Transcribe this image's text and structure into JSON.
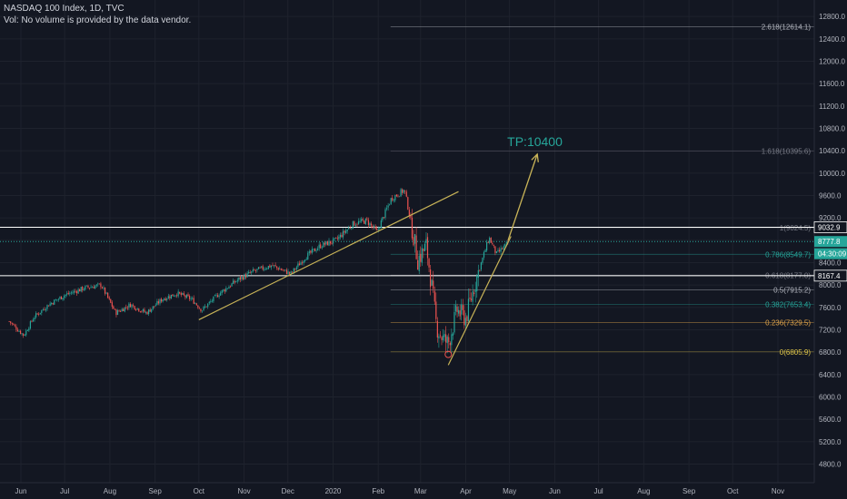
{
  "header": {
    "title": "NASDAQ 100 Index, 1D, TVC",
    "volume_note": "Vol: No volume is provided by the data vendor."
  },
  "colors": {
    "background": "#131722",
    "grid": "#1e222d",
    "up": "#26a69a",
    "down": "#ef5350",
    "trendline": "#c9b458",
    "tp_arrow": "#c9b458",
    "tp_text": "#26a69a",
    "white_line": "#ffffff",
    "dotted_line": "#26a69a"
  },
  "chart_data": {
    "type": "candlestick",
    "y_range": [
      4500,
      12900
    ],
    "y_ticks": [
      4800,
      5200,
      5600,
      6000,
      6400,
      6800,
      7200,
      7600,
      8000,
      8400,
      8800,
      9200,
      9600,
      10000,
      10400,
      10800,
      11200,
      11600,
      12000,
      12400,
      12800
    ],
    "x_labels": [
      {
        "label": "Jun",
        "date": "2019-06-01"
      },
      {
        "label": "Jul",
        "date": "2019-07-01"
      },
      {
        "label": "Aug",
        "date": "2019-08-01"
      },
      {
        "label": "Sep",
        "date": "2019-09-01"
      },
      {
        "label": "Oct",
        "date": "2019-10-01"
      },
      {
        "label": "Nov",
        "date": "2019-11-01"
      },
      {
        "label": "Dec",
        "date": "2019-12-01"
      },
      {
        "label": "2020",
        "date": "2020-01-01"
      },
      {
        "label": "Feb",
        "date": "2020-02-01"
      },
      {
        "label": "Mar",
        "date": "2020-03-01"
      },
      {
        "label": "Apr",
        "date": "2020-04-01"
      },
      {
        "label": "May",
        "date": "2020-05-01"
      },
      {
        "label": "Jun",
        "date": "2020-06-01"
      },
      {
        "label": "Jul",
        "date": "2020-07-01"
      },
      {
        "label": "Aug",
        "date": "2020-08-01"
      },
      {
        "label": "Sep",
        "date": "2020-09-01"
      },
      {
        "label": "Oct",
        "date": "2020-10-01"
      },
      {
        "label": "Nov",
        "date": "2020-11-01"
      }
    ],
    "closes": [
      {
        "date": "2019-05-24",
        "value": 7350
      },
      {
        "date": "2019-06-03",
        "value": 7100
      },
      {
        "date": "2019-06-10",
        "value": 7430
      },
      {
        "date": "2019-06-20",
        "value": 7650
      },
      {
        "date": "2019-07-01",
        "value": 7820
      },
      {
        "date": "2019-07-15",
        "value": 7950
      },
      {
        "date": "2019-07-26",
        "value": 8000
      },
      {
        "date": "2019-08-05",
        "value": 7500
      },
      {
        "date": "2019-08-15",
        "value": 7650
      },
      {
        "date": "2019-08-26",
        "value": 7500
      },
      {
        "date": "2019-09-06",
        "value": 7750
      },
      {
        "date": "2019-09-16",
        "value": 7850
      },
      {
        "date": "2019-09-26",
        "value": 7750
      },
      {
        "date": "2019-10-03",
        "value": 7550
      },
      {
        "date": "2019-10-15",
        "value": 7850
      },
      {
        "date": "2019-10-28",
        "value": 8100
      },
      {
        "date": "2019-11-08",
        "value": 8250
      },
      {
        "date": "2019-11-20",
        "value": 8350
      },
      {
        "date": "2019-12-03",
        "value": 8200
      },
      {
        "date": "2019-12-13",
        "value": 8500
      },
      {
        "date": "2019-12-23",
        "value": 8700
      },
      {
        "date": "2020-01-03",
        "value": 8800
      },
      {
        "date": "2020-01-15",
        "value": 9100
      },
      {
        "date": "2020-01-24",
        "value": 9150
      },
      {
        "date": "2020-01-31",
        "value": 8950
      },
      {
        "date": "2020-02-10",
        "value": 9550
      },
      {
        "date": "2020-02-19",
        "value": 9700
      },
      {
        "date": "2020-02-24",
        "value": 9050
      },
      {
        "date": "2020-02-28",
        "value": 8450
      },
      {
        "date": "2020-03-05",
        "value": 8700
      },
      {
        "date": "2020-03-09",
        "value": 7900
      },
      {
        "date": "2020-03-12",
        "value": 7250
      },
      {
        "date": "2020-03-16",
        "value": 7050
      },
      {
        "date": "2020-03-20",
        "value": 6950
      },
      {
        "date": "2020-03-26",
        "value": 7550
      },
      {
        "date": "2020-04-01",
        "value": 7400
      },
      {
        "date": "2020-04-08",
        "value": 8100
      },
      {
        "date": "2020-04-17",
        "value": 8850
      },
      {
        "date": "2020-04-22",
        "value": 8550
      },
      {
        "date": "2020-04-30",
        "value": 8750
      }
    ],
    "fib_levels": [
      {
        "label": "2.618(12614.1)",
        "value": 12614.1,
        "color": "#b2b5be"
      },
      {
        "label": "1.618(10395.6)",
        "value": 10395.6,
        "color": "#787b86"
      },
      {
        "label": "1(9024.5)",
        "value": 9024.5,
        "color": "#787b86"
      },
      {
        "label": "0.786(8549.7)",
        "value": 8549.7,
        "color": "#26a69a"
      },
      {
        "label": "0.618(8177.0)",
        "value": 8177.0,
        "color": "#787b86"
      },
      {
        "label": "0.5(7915.2)",
        "value": 7915.2,
        "color": "#b2b5be"
      },
      {
        "label": "0.382(7653.4)",
        "value": 7653.4,
        "color": "#26a69a"
      },
      {
        "label": "0.236(7329.5)",
        "value": 7329.5,
        "color": "#e0a44a"
      },
      {
        "label": "0(6805.9)",
        "value": 6805.9,
        "color": "#e0c64a"
      }
    ],
    "horizontal_lines": [
      {
        "value": 9032.9,
        "label": "9032.9"
      },
      {
        "value": 8167.4,
        "label": "8167.4"
      }
    ],
    "dotted_line": {
      "value": 8777.8
    },
    "price_badges": [
      {
        "label": "8777.8",
        "value": 8777.8,
        "bg": "#26a69a"
      },
      {
        "label": "04:30:09",
        "value": 8560,
        "bg": "#26a69a"
      }
    ],
    "trendlines": [
      {
        "from": {
          "date": "2019-10-01",
          "value": 7380
        },
        "to": {
          "date": "2020-03-27",
          "value": 9670
        }
      },
      {
        "from": {
          "date": "2020-03-20",
          "value": 6570
        },
        "to": {
          "date": "2020-05-02",
          "value": 8870
        }
      }
    ],
    "tp_arrow": {
      "from": {
        "date": "2020-04-30",
        "value": 8800
      },
      "to": {
        "date": "2020-05-20",
        "value": 10340
      }
    },
    "tp_label": "TP:10400",
    "low_marker": {
      "date": "2020-03-20",
      "value": 6760
    }
  }
}
